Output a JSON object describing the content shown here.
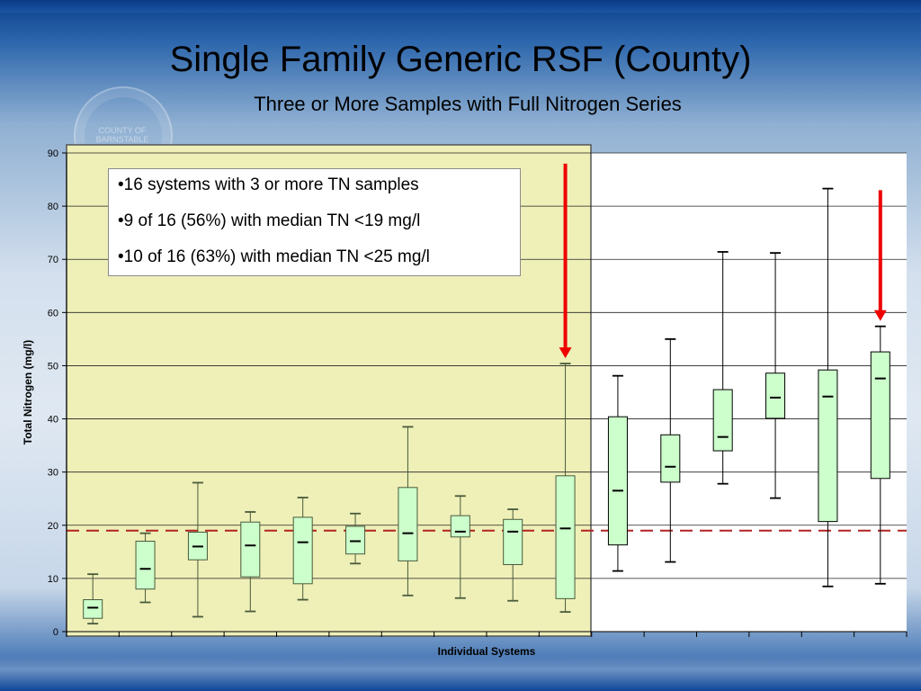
{
  "slide": {
    "title": "Single Family Generic RSF (County)",
    "subtitle": "Three or More Samples with Full Nitrogen Series",
    "seal_text": "COUNTY OF BARNSTABLE"
  },
  "infobox": {
    "lines": [
      "•16 systems with 3 or more TN samples",
      "•9 of 16 (56%) with median TN <19 mg/l",
      "•10 of 16 (63%) with median TN <25 mg/l"
    ]
  },
  "colors": {
    "box_fill": "#ccffcc",
    "highlight_fill": "#eef0b8",
    "reference_line": "#b22222",
    "arrow": "#ee0000"
  },
  "chart_data": {
    "type": "box",
    "xlabel": "Individual Systems",
    "ylabel": "Total Nitrogen (mg/l)",
    "ylim": [
      0,
      90
    ],
    "yticks": [
      0,
      10,
      20,
      30,
      40,
      50,
      60,
      70,
      80,
      90
    ],
    "grid": true,
    "reference_line": 19,
    "highlighted_systems": 10,
    "arrow_systems": [
      10,
      16
    ],
    "systems": [
      {
        "min": 1.5,
        "q1": 2.5,
        "median": 4.5,
        "q3": 6,
        "max": 10.8
      },
      {
        "min": 5.5,
        "q1": 8,
        "median": 11.8,
        "q3": 17,
        "max": 18.5
      },
      {
        "min": 2.8,
        "q1": 13.5,
        "median": 16,
        "q3": 18.7,
        "max": 28
      },
      {
        "min": 3.8,
        "q1": 10.3,
        "median": 16.2,
        "q3": 20.6,
        "max": 22.5
      },
      {
        "min": 6,
        "q1": 9,
        "median": 16.8,
        "q3": 21.5,
        "max": 25.2
      },
      {
        "min": 12.8,
        "q1": 14.6,
        "median": 17,
        "q3": 19.8,
        "max": 22.2
      },
      {
        "min": 6.8,
        "q1": 13.3,
        "median": 18.5,
        "q3": 27.1,
        "max": 38.5
      },
      {
        "min": 6.3,
        "q1": 17.8,
        "median": 18.8,
        "q3": 21.8,
        "max": 25.5
      },
      {
        "min": 5.8,
        "q1": 12.6,
        "median": 18.8,
        "q3": 21.1,
        "max": 23
      },
      {
        "min": 3.7,
        "q1": 6.2,
        "median": 19.4,
        "q3": 29.3,
        "max": 50.4
      },
      {
        "min": 11.4,
        "q1": 16.3,
        "median": 26.5,
        "q3": 40.4,
        "max": 48.1
      },
      {
        "min": 13.1,
        "q1": 28.1,
        "median": 31,
        "q3": 37,
        "max": 55
      },
      {
        "min": 27.8,
        "q1": 34,
        "median": 36.6,
        "q3": 45.5,
        "max": 71.4
      },
      {
        "min": 25.1,
        "q1": 40.1,
        "median": 44,
        "q3": 48.6,
        "max": 71.2
      },
      {
        "min": 8.5,
        "q1": 20.7,
        "median": 44.2,
        "q3": 49.2,
        "max": 83.3
      },
      {
        "min": 9,
        "q1": 28.8,
        "median": 47.6,
        "q3": 52.6,
        "max": 57.4
      }
    ]
  }
}
